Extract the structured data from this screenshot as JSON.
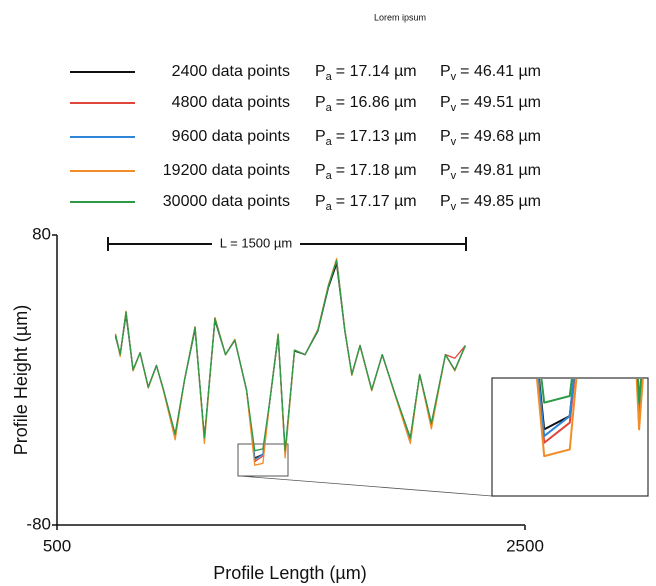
{
  "chart_data": {
    "type": "line",
    "title": "Lorem ipsum",
    "xlabel": "Profile Length (µm)",
    "ylabel": "Profile Height (µm)",
    "annotation": "L = 1500 µm",
    "xlim": [
      500,
      2500
    ],
    "xticks": [
      500,
      2500
    ],
    "ylim": [
      -80,
      80
    ],
    "yticks": [
      -80,
      80
    ],
    "x": [
      750,
      770,
      795,
      825,
      855,
      890,
      925,
      955,
      1005,
      1045,
      1090,
      1130,
      1175,
      1220,
      1260,
      1310,
      1345,
      1380,
      1410,
      1445,
      1475,
      1515,
      1560,
      1615,
      1660,
      1695,
      1730,
      1760,
      1795,
      1845,
      1890,
      1945,
      2010,
      2050,
      2100,
      2160,
      2200,
      2245
    ],
    "series": [
      {
        "name": "2400 data points",
        "color": "#111111",
        "values": [
          24,
          14,
          36,
          5.5,
          15,
          -4,
          8,
          -5.5,
          -30,
          0,
          28,
          -32,
          33,
          14,
          22,
          -5.5,
          -43,
          -41,
          -11,
          24,
          -40,
          16,
          14,
          27,
          51,
          64,
          27,
          3,
          19,
          -5.5,
          14,
          -8,
          -32,
          3,
          -24,
          14,
          5.5,
          19
        ]
      },
      {
        "name": "4800 data points",
        "color": "#e0453a",
        "values": [
          25,
          14,
          37.5,
          5.5,
          15,
          -4,
          8,
          -5.5,
          -31,
          0,
          29,
          -33,
          34,
          14,
          22,
          -5.5,
          -45,
          -42,
          -11,
          25,
          -41,
          16.5,
          14,
          27.5,
          52,
          66,
          27.5,
          3,
          19,
          -5.5,
          14,
          -8,
          -33,
          3,
          -25,
          14,
          12,
          19
        ]
      },
      {
        "name": "9600 data points",
        "color": "#2f86d6",
        "values": [
          25,
          14,
          37.5,
          5.5,
          15,
          -4,
          8,
          -5.5,
          -31,
          0,
          29,
          -33,
          34,
          14,
          22,
          -5.5,
          -44,
          -41,
          -11,
          25,
          -41,
          16.5,
          14,
          27.5,
          52,
          66,
          27.5,
          3,
          19,
          -5.5,
          14,
          -8,
          -33,
          3,
          -25,
          14,
          5.5,
          19
        ]
      },
      {
        "name": "19200 data points",
        "color": "#f28c28",
        "values": [
          25.5,
          13,
          38,
          5,
          15,
          -4.5,
          8,
          -6,
          -33,
          0,
          29.5,
          -35,
          34.5,
          14,
          22.5,
          -6,
          -47,
          -46,
          -11,
          25.5,
          -43,
          16.5,
          14,
          28,
          52.5,
          67,
          27.5,
          2.5,
          19,
          -6,
          14,
          -8.5,
          -35,
          3,
          -27,
          14,
          5,
          19
        ]
      },
      {
        "name": "30000 data points",
        "color": "#2e9a48",
        "values": [
          25,
          14,
          37.5,
          5.5,
          15,
          -4,
          8,
          -5.5,
          -30,
          0,
          29,
          -32,
          34,
          14,
          22,
          -5.5,
          -39,
          -38,
          -11,
          25,
          -39,
          16.5,
          14,
          27.5,
          52,
          66,
          27.5,
          3,
          19,
          -5.5,
          14,
          -8,
          -32,
          3,
          -24,
          14,
          5.5,
          19
        ]
      }
    ],
    "stats": [
      {
        "pa": {
          "symbol": "P",
          "sub": "a",
          "text": "= 17.14 µm"
        },
        "pv": {
          "symbol": "P",
          "sub": "v",
          "text": "= 46.41 µm"
        }
      },
      {
        "pa": {
          "symbol": "P",
          "sub": "a",
          "text": "= 16.86 µm"
        },
        "pv": {
          "symbol": "P",
          "sub": "v",
          "text": "= 49.51 µm"
        }
      },
      {
        "pa": {
          "symbol": "P",
          "sub": "a",
          "text": "= 17.13 µm"
        },
        "pv": {
          "symbol": "P",
          "sub": "v",
          "text": "= 49.68 µm"
        }
      },
      {
        "pa": {
          "symbol": "P",
          "sub": "a",
          "text": "= 17.18 µm"
        },
        "pv": {
          "symbol": "P",
          "sub": "v",
          "text": "= 49.81 µm"
        }
      },
      {
        "pa": {
          "symbol": "P",
          "sub": "a",
          "text": "= 17.17 µm"
        },
        "pv": {
          "symbol": "P",
          "sub": "v",
          "text": "= 49.85 µm"
        }
      }
    ]
  }
}
